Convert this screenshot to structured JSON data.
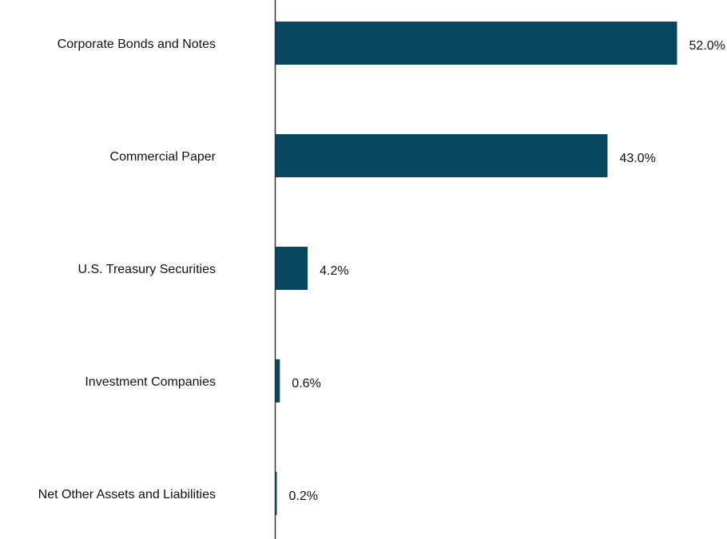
{
  "chart_data": {
    "type": "bar",
    "orientation": "horizontal",
    "categories": [
      "Corporate Bonds and Notes",
      "Commercial Paper",
      "U.S. Treasury Securities",
      "Investment Companies",
      "Net Other Assets and Liabilities"
    ],
    "values": [
      52.0,
      43.0,
      4.2,
      0.6,
      0.2
    ],
    "value_labels": [
      "52.0%",
      "43.0%",
      "4.2%",
      "0.6%",
      "0.2%"
    ],
    "title": "",
    "xlabel": "",
    "ylabel": "",
    "xlim": [
      0,
      58
    ],
    "grid": false,
    "bar_color": "#08475e"
  }
}
